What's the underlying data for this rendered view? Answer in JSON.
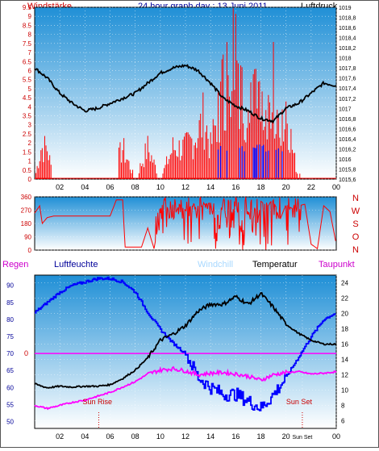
{
  "header": {
    "left": "Windstärke",
    "title": "24 hour graph day : 13 Juni 2011",
    "right": "Luftdruck"
  },
  "colors": {
    "plot_top": "#1f8fd6",
    "plot_bottom": "#ffffff",
    "wind": "#ff0000",
    "gust_low": "#0000ff",
    "pressure": "#000000",
    "humidity": "#0000ff",
    "windchill": "#a8d8ff",
    "temperature": "#000000",
    "dewpoint": "#ff00ff",
    "left_axis": "#cc0000",
    "hum_axis": "#000099"
  },
  "chart_data": [
    {
      "type": "line",
      "x_ticks": [
        "02",
        "04",
        "06",
        "08",
        "10",
        "12",
        "14",
        "16",
        "18",
        "20",
        "22",
        "00"
      ],
      "left_axis": {
        "ylim": [
          0,
          9.5
        ],
        "ticks": [
          "0",
          "0.5",
          "1",
          "1.5",
          "2",
          "2.5",
          "3",
          "3.5",
          "4",
          "4.5",
          "5",
          "5.5",
          "6",
          "6.5",
          "7",
          "7.5",
          "8",
          "8.5",
          "9",
          "9.5"
        ]
      },
      "right_axis": {
        "ylim": [
          1015.6,
          1019.0
        ],
        "ticks": [
          "1015,6",
          "1015,8",
          "1016",
          "1016,2",
          "1016,4",
          "1016,6",
          "1016,8",
          "1017",
          "1017,2",
          "1017,4",
          "1017,6",
          "1017,8",
          "1018",
          "1018,2",
          "1018,4",
          "1018,6",
          "1018,8",
          "1019"
        ]
      },
      "series": [
        {
          "name": "Windstärke",
          "axis": "left",
          "hours": [
            0,
            0.5,
            1,
            1.5,
            2,
            4,
            6,
            7,
            8,
            9,
            10,
            11,
            12,
            13,
            13.5,
            14,
            14.5,
            15,
            15.5,
            16,
            16.5,
            17,
            17.5,
            18,
            18.5,
            19,
            19.5,
            20,
            20.5,
            21,
            21.5,
            22,
            23,
            24
          ],
          "values": [
            0,
            2,
            2,
            0,
            0,
            0,
            0,
            2,
            0,
            2,
            0,
            2,
            2,
            3,
            4,
            2,
            4,
            6,
            7,
            9.5,
            5,
            4,
            5,
            4,
            3,
            6,
            2,
            5,
            2,
            0,
            2,
            0,
            0,
            0
          ]
        },
        {
          "name": "Luftdruck",
          "axis": "right",
          "hours": [
            0,
            1,
            2,
            3,
            4,
            5,
            6,
            7,
            8,
            9,
            10,
            11,
            12,
            13,
            14,
            15,
            16,
            17,
            18,
            19,
            20,
            21,
            22,
            23,
            24
          ],
          "values": [
            1017.8,
            1017.6,
            1017.3,
            1017.1,
            1016.95,
            1017.0,
            1017.1,
            1017.2,
            1017.3,
            1017.5,
            1017.7,
            1017.8,
            1017.85,
            1017.75,
            1017.5,
            1017.2,
            1017.05,
            1016.95,
            1016.8,
            1016.75,
            1017.0,
            1017.1,
            1017.3,
            1017.5,
            1017.45
          ]
        }
      ]
    },
    {
      "type": "line",
      "x_ticks": [],
      "left_axis": {
        "ylim": [
          0,
          360
        ],
        "ticks": [
          "0",
          "90",
          "180",
          "270",
          "360"
        ]
      },
      "right_labels": [
        "N",
        "W",
        "S",
        "O",
        "N"
      ],
      "series": [
        {
          "name": "Windrichtung",
          "hours": [
            0,
            0.4,
            0.6,
            1,
            1.5,
            2,
            4,
            6,
            6.5,
            7,
            7.2,
            8,
            8.5,
            9,
            9.5,
            10,
            10.5,
            11,
            11.5,
            12,
            12.5,
            13,
            13.5,
            14,
            14.5,
            15,
            15.5,
            16,
            16.5,
            17,
            17.5,
            18,
            18.5,
            19,
            19.5,
            20,
            20.5,
            21,
            21.5,
            22,
            22.5,
            23,
            23.5,
            24
          ],
          "values": [
            250,
            300,
            180,
            220,
            230,
            230,
            230,
            230,
            340,
            340,
            20,
            20,
            20,
            150,
            10,
            250,
            300,
            200,
            310,
            270,
            300,
            280,
            310,
            320,
            60,
            330,
            80,
            320,
            100,
            280,
            40,
            330,
            300,
            340,
            200,
            310,
            280,
            300,
            310,
            40,
            10,
            300,
            260,
            40
          ]
        }
      ]
    },
    {
      "type": "line",
      "x_ticks": [
        "02",
        "04",
        "06",
        "08",
        "10",
        "12",
        "14",
        "16",
        "18",
        "20",
        "Sun Set",
        "00"
      ],
      "legend": [
        "Regen",
        "Luftfeuchte",
        "Windchill",
        "Temperatur",
        "Taupunkt"
      ],
      "left_axis": {
        "ylim": [
          48,
          93
        ],
        "ticks": [
          "50",
          "55",
          "60",
          "65",
          "70",
          "75",
          "80",
          "85",
          "90"
        ]
      },
      "right_axis": {
        "ylim": [
          5,
          25
        ],
        "ticks": [
          "6",
          "8",
          "10",
          "12",
          "14",
          "16",
          "18",
          "20",
          "22",
          "24"
        ]
      },
      "rain_marker": "0",
      "annotations": [
        "Sun Rise",
        "Sun Set"
      ],
      "sun_rise_hour": 5.1,
      "sun_set_hour": 21.3,
      "series": [
        {
          "name": "Luftfeuchte",
          "axis": "left",
          "hours": [
            0,
            1,
            2,
            3,
            4,
            5,
            6,
            7,
            8,
            9,
            10,
            11,
            12,
            13,
            14,
            15,
            16,
            17,
            18,
            19,
            20,
            21,
            22,
            23,
            24
          ],
          "values": [
            82,
            85,
            88,
            90,
            91,
            92,
            92,
            91,
            88,
            82,
            77,
            73,
            70,
            63,
            60,
            58,
            58,
            56,
            54,
            58,
            63,
            69,
            75,
            80,
            82
          ]
        },
        {
          "name": "Temperatur",
          "axis": "right",
          "hours": [
            0,
            1,
            2,
            3,
            4,
            5,
            6,
            7,
            8,
            9,
            10,
            11,
            12,
            13,
            14,
            15,
            16,
            17,
            18,
            19,
            20,
            21,
            22,
            23,
            24
          ],
          "values": [
            10.8,
            10.3,
            10.5,
            10.4,
            10.5,
            10.5,
            10.7,
            11.5,
            12.6,
            14.2,
            16.5,
            17.3,
            18.4,
            20.3,
            21.2,
            21.2,
            22.2,
            21.2,
            22.6,
            20.8,
            18.6,
            17.4,
            16.5,
            16.0,
            16.0
          ]
        },
        {
          "name": "Taupunkt",
          "axis": "right",
          "hours": [
            0,
            1,
            2,
            3,
            4,
            5,
            6,
            7,
            8,
            9,
            10,
            11,
            12,
            13,
            14,
            15,
            16,
            17,
            18,
            19,
            20,
            21,
            22,
            23,
            24
          ],
          "values": [
            8.0,
            7.6,
            8.0,
            8.4,
            8.7,
            9.2,
            9.7,
            10.4,
            11.1,
            12.1,
            12.6,
            12.8,
            12.5,
            12.0,
            12.2,
            12.3,
            12.1,
            11.8,
            11.3,
            12.0,
            12.3,
            12.4,
            12.1,
            12.2,
            12.4
          ]
        }
      ]
    }
  ]
}
